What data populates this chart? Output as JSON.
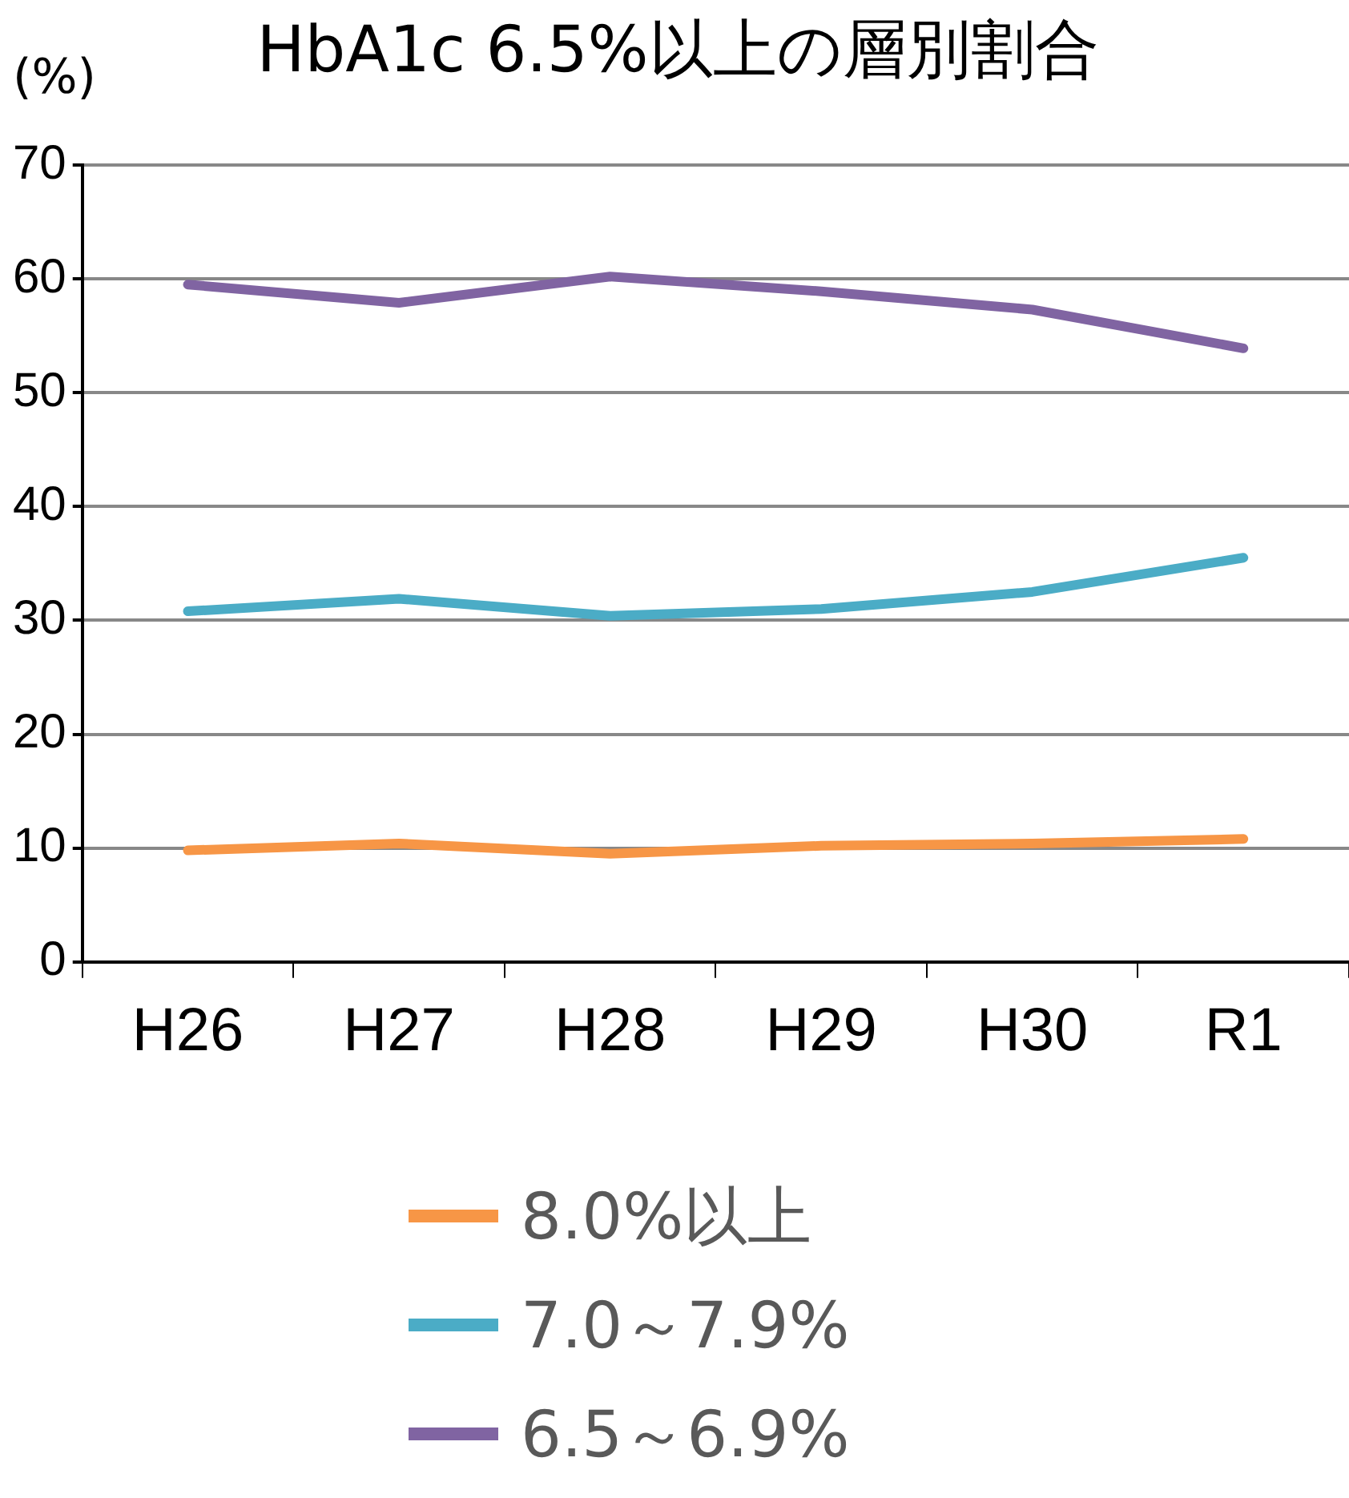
{
  "chart_data": {
    "type": "line",
    "title": "HbA1c 6.5%以上の層別割合",
    "ylabel": "(%)",
    "categories": [
      "H26",
      "H27",
      "H28",
      "H29",
      "H30",
      "R1"
    ],
    "series": [
      {
        "name": "8.0%以上",
        "color": "#f79646",
        "values": [
          9.8,
          10.4,
          9.5,
          10.2,
          10.4,
          10.8
        ]
      },
      {
        "name": "7.0～7.9%",
        "color": "#4bacc6",
        "values": [
          30.8,
          31.9,
          30.4,
          31.0,
          32.5,
          35.5
        ]
      },
      {
        "name": "6.5～6.9%",
        "color": "#8064a2",
        "values": [
          59.5,
          57.9,
          60.2,
          58.9,
          57.3,
          53.9
        ]
      }
    ],
    "ylim": [
      0,
      70
    ],
    "yticks": [
      0,
      10,
      20,
      30,
      40,
      50,
      60,
      70
    ],
    "grid": "y",
    "legend": "bottom",
    "marker": "none",
    "line_style": "solid"
  }
}
